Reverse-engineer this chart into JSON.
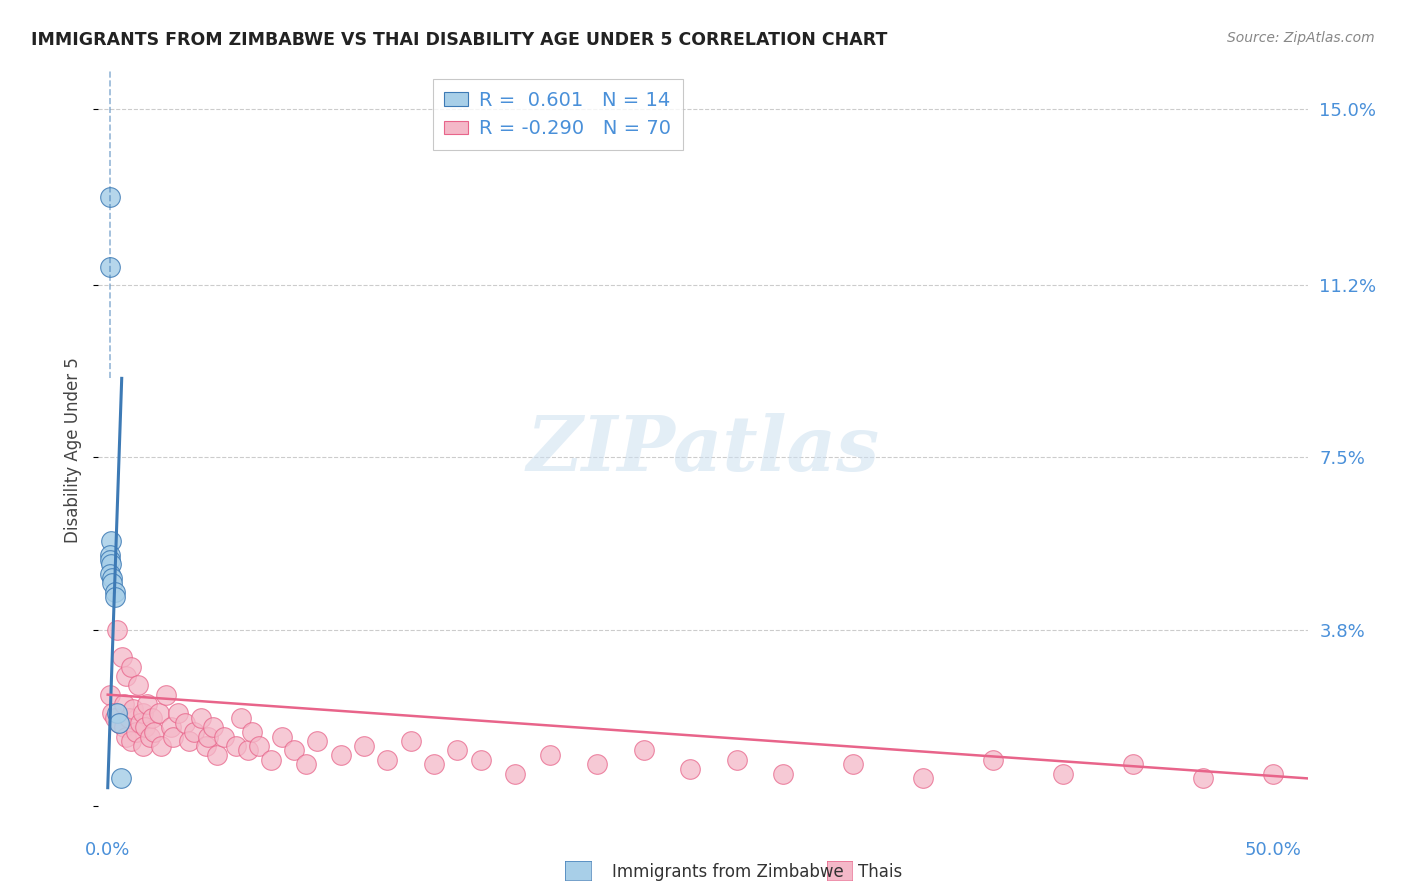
{
  "title": "IMMIGRANTS FROM ZIMBABWE VS THAI DISABILITY AGE UNDER 5 CORRELATION CHART",
  "source": "Source: ZipAtlas.com",
  "ylabel": "Disability Age Under 5",
  "ytick_vals": [
    0.038,
    0.075,
    0.112,
    0.15
  ],
  "ytick_labels": [
    "3.8%",
    "7.5%",
    "11.2%",
    "15.0%"
  ],
  "xtick_vals": [
    0.0,
    0.5
  ],
  "xtick_labels": [
    "0.0%",
    "50.0%"
  ],
  "xlim": [
    -0.004,
    0.515
  ],
  "ylim": [
    -0.005,
    0.158
  ],
  "watermark": "ZIPatlas",
  "legend_line1": "R =  0.601   N = 14",
  "legend_line2": "R = -0.290   N = 70",
  "color_blue": "#a8cfe8",
  "color_pink": "#f4b8c8",
  "color_blue_dark": "#3d7ab5",
  "color_pink_dark": "#e8648a",
  "color_title": "#222222",
  "color_source": "#888888",
  "color_axis": "#4a90d9",
  "color_legend_text": "#4a90d9",
  "color_grid": "#cccccc",
  "zimbabwe_x": [
    0.001,
    0.001,
    0.0012,
    0.0008,
    0.001,
    0.0015,
    0.001,
    0.002,
    0.002,
    0.003,
    0.003,
    0.004,
    0.005,
    0.0055
  ],
  "zimbabwe_y": [
    0.131,
    0.116,
    0.057,
    0.054,
    0.053,
    0.052,
    0.05,
    0.049,
    0.048,
    0.046,
    0.045,
    0.02,
    0.018,
    0.006
  ],
  "thai_x": [
    0.001,
    0.002,
    0.003,
    0.004,
    0.005,
    0.006,
    0.007,
    0.007,
    0.008,
    0.008,
    0.009,
    0.01,
    0.01,
    0.011,
    0.012,
    0.013,
    0.014,
    0.015,
    0.015,
    0.016,
    0.017,
    0.018,
    0.019,
    0.02,
    0.022,
    0.023,
    0.025,
    0.027,
    0.028,
    0.03,
    0.033,
    0.035,
    0.037,
    0.04,
    0.042,
    0.043,
    0.045,
    0.047,
    0.05,
    0.055,
    0.057,
    0.06,
    0.062,
    0.065,
    0.07,
    0.075,
    0.08,
    0.085,
    0.09,
    0.1,
    0.11,
    0.12,
    0.13,
    0.14,
    0.15,
    0.16,
    0.175,
    0.19,
    0.21,
    0.23,
    0.25,
    0.27,
    0.29,
    0.32,
    0.35,
    0.38,
    0.41,
    0.44,
    0.47,
    0.5
  ],
  "thai_y": [
    0.024,
    0.02,
    0.019,
    0.038,
    0.018,
    0.032,
    0.022,
    0.017,
    0.028,
    0.015,
    0.019,
    0.03,
    0.014,
    0.021,
    0.016,
    0.026,
    0.018,
    0.02,
    0.013,
    0.017,
    0.022,
    0.015,
    0.019,
    0.016,
    0.02,
    0.013,
    0.024,
    0.017,
    0.015,
    0.02,
    0.018,
    0.014,
    0.016,
    0.019,
    0.013,
    0.015,
    0.017,
    0.011,
    0.015,
    0.013,
    0.019,
    0.012,
    0.016,
    0.013,
    0.01,
    0.015,
    0.012,
    0.009,
    0.014,
    0.011,
    0.013,
    0.01,
    0.014,
    0.009,
    0.012,
    0.01,
    0.007,
    0.011,
    0.009,
    0.012,
    0.008,
    0.01,
    0.007,
    0.009,
    0.006,
    0.01,
    0.007,
    0.009,
    0.006,
    0.007
  ],
  "zim_trendline_x": [
    0.0,
    0.006
  ],
  "zim_trendline_y": [
    0.004,
    0.092
  ],
  "thai_trendline_x": [
    0.0,
    0.515
  ],
  "thai_trendline_y": [
    0.024,
    0.006
  ]
}
